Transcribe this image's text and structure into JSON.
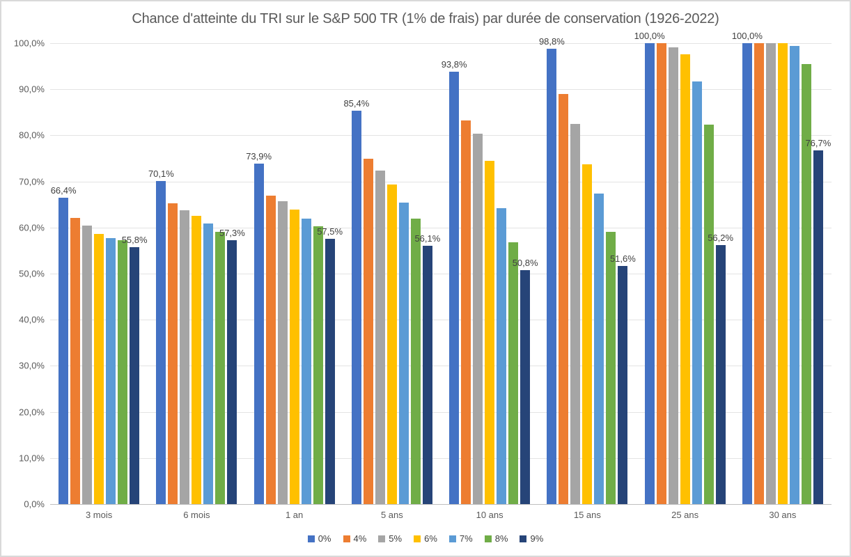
{
  "chart_data": {
    "type": "bar",
    "title": "Chance d'atteinte du TRI sur le S&P 500 TR (1% de frais) par durée de conservation (1926-2022)",
    "categories": [
      "3 mois",
      "6 mois",
      "1 an",
      "5 ans",
      "10 ans",
      "15 ans",
      "25 ans",
      "30 ans"
    ],
    "series": [
      {
        "name": "0%",
        "color": "#4472C4",
        "show_labels": true,
        "values": [
          66.4,
          70.1,
          73.9,
          85.4,
          93.8,
          98.8,
          100.0,
          100.0
        ],
        "labels": [
          "66,4%",
          "70,1%",
          "73,9%",
          "85,4%",
          "93,8%",
          "98,8%",
          "100,0%",
          "100,0%"
        ]
      },
      {
        "name": "4%",
        "color": "#ED7D31",
        "show_labels": false,
        "values": [
          62.1,
          65.2,
          66.9,
          75.0,
          83.2,
          88.9,
          100.0,
          100.0
        ]
      },
      {
        "name": "5%",
        "color": "#A5A5A5",
        "show_labels": false,
        "values": [
          60.5,
          63.8,
          65.7,
          72.4,
          80.4,
          82.5,
          99.1,
          100.0
        ]
      },
      {
        "name": "6%",
        "color": "#FFC000",
        "show_labels": false,
        "values": [
          58.6,
          62.5,
          63.9,
          69.4,
          74.5,
          73.7,
          97.6,
          100.0
        ]
      },
      {
        "name": "7%",
        "color": "#5B9BD5",
        "show_labels": false,
        "values": [
          57.7,
          60.9,
          61.9,
          65.4,
          64.2,
          67.4,
          91.7,
          99.4
        ]
      },
      {
        "name": "8%",
        "color": "#70AD47",
        "show_labels": false,
        "values": [
          57.3,
          59.0,
          60.3,
          61.9,
          56.8,
          59.1,
          82.3,
          95.4
        ]
      },
      {
        "name": "9%",
        "color": "#264478",
        "show_labels": true,
        "values": [
          55.8,
          57.3,
          57.5,
          56.1,
          50.8,
          51.6,
          56.2,
          76.7
        ],
        "labels": [
          "55,8%",
          "57,3%",
          "57,5%",
          "56,1%",
          "50,8%",
          "51,6%",
          "56,2%",
          "76,7%"
        ]
      }
    ],
    "ylim": [
      0,
      100
    ],
    "ytick_step": 10,
    "ytick_labels": [
      "0,0%",
      "10,0%",
      "20,0%",
      "30,0%",
      "40,0%",
      "50,0%",
      "60,0%",
      "70,0%",
      "80,0%",
      "90,0%",
      "100,0%"
    ],
    "grid": "horizontal-only",
    "legend_position": "bottom-center",
    "legend_items": [
      "0%",
      "4%",
      "5%",
      "6%",
      "7%",
      "8%",
      "9%"
    ]
  }
}
